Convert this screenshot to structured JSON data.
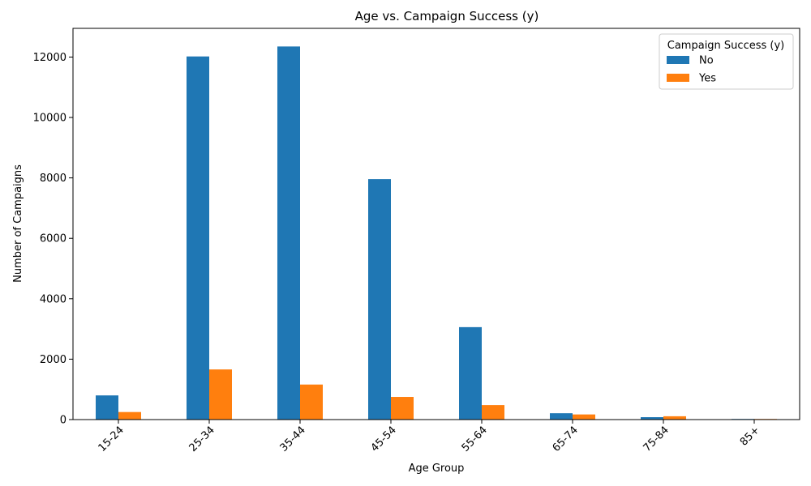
{
  "chart_data": {
    "type": "bar",
    "title": "Age vs. Campaign Success (y)",
    "xlabel": "Age Group",
    "ylabel": "Number of Campaigns",
    "categories": [
      "15-24",
      "25-34",
      "35-44",
      "45-54",
      "55-64",
      "65-74",
      "75-84",
      "85+"
    ],
    "series": [
      {
        "name": "No",
        "color": "#1f77b4",
        "values": [
          800,
          12020,
          12350,
          7960,
          3060,
          210,
          80,
          20
        ]
      },
      {
        "name": "Yes",
        "color": "#ff7f0e",
        "values": [
          250,
          1660,
          1160,
          750,
          480,
          170,
          110,
          20
        ]
      }
    ],
    "ylim": [
      0,
      12950
    ],
    "yticks": [
      0,
      2000,
      4000,
      6000,
      8000,
      10000,
      12000
    ],
    "legend": {
      "title": "Campaign Success (y)",
      "position": "top-right"
    },
    "grid": false
  }
}
